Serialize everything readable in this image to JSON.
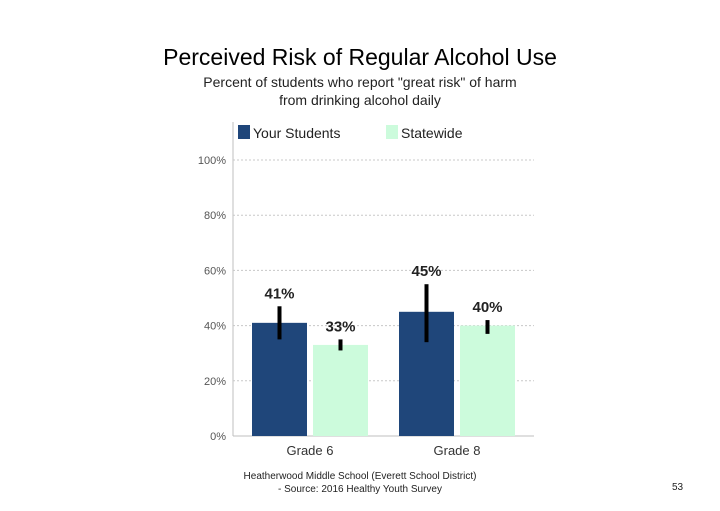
{
  "chart_data": {
    "type": "bar",
    "title": "Perceived Risk of Regular Alcohol Use",
    "subtitle_lines": [
      "Percent of students who report \"great risk\" of harm",
      "from drinking alcohol daily"
    ],
    "categories": [
      "Grade 6",
      "Grade 8"
    ],
    "series": [
      {
        "name": "Your Students",
        "color": "#1f467a",
        "values": [
          41,
          45
        ],
        "labels": [
          "41%",
          "45%"
        ],
        "error_low": [
          35,
          34
        ],
        "error_high": [
          47,
          55
        ]
      },
      {
        "name": "Statewide",
        "color": "#ccfbdc",
        "values": [
          33,
          40
        ],
        "labels": [
          "33%",
          "40%"
        ],
        "error_low": [
          31,
          37
        ],
        "error_high": [
          35,
          42
        ]
      }
    ],
    "y_ticks": [
      "0%",
      "20%",
      "40%",
      "60%",
      "80%",
      "100%"
    ],
    "ylim": [
      0,
      100
    ],
    "grid": true,
    "legend_position": "top"
  },
  "footer": {
    "line1": "Heatherwood Middle School (Everett School District)",
    "line2": "- Source: 2016 Healthy Youth Survey"
  },
  "page_number": "53"
}
